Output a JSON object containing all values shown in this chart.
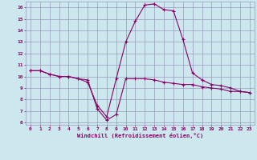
{
  "xlabel": "Windchill (Refroidissement éolien,°C)",
  "background_color": "#cce8ee",
  "line_color": "#880066",
  "grid_color": "#9999bb",
  "x_hours": [
    0,
    1,
    2,
    3,
    4,
    5,
    6,
    7,
    8,
    9,
    10,
    11,
    12,
    13,
    14,
    15,
    16,
    17,
    18,
    19,
    20,
    21,
    22,
    23
  ],
  "temp_line": [
    10.5,
    10.5,
    10.2,
    10.0,
    10.0,
    9.8,
    9.7,
    7.2,
    6.2,
    6.7,
    9.8,
    9.8,
    9.8,
    9.7,
    9.5,
    9.4,
    9.3,
    9.3,
    9.1,
    9.0,
    8.9,
    8.7,
    8.7,
    8.6
  ],
  "windchill_line": [
    10.5,
    10.5,
    10.2,
    10.0,
    10.0,
    9.8,
    9.5,
    7.5,
    6.5,
    9.8,
    13.0,
    14.8,
    16.2,
    16.3,
    15.8,
    15.7,
    13.2,
    10.3,
    9.7,
    9.3,
    9.2,
    9.0,
    8.7,
    8.6
  ],
  "ylim": [
    5.8,
    16.5
  ],
  "yticks": [
    6,
    7,
    8,
    9,
    10,
    11,
    12,
    13,
    14,
    15,
    16
  ],
  "xlim": [
    -0.5,
    23.5
  ]
}
